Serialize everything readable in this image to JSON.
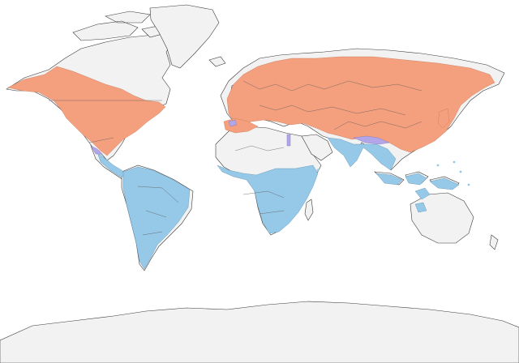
{
  "map": {
    "background": "#ffffff",
    "land_color": "#f2f2f2",
    "coast_color": "#3a3a3a",
    "ranges": [
      {
        "kind": "breeding",
        "color": "#f4a07e"
      },
      {
        "kind": "non-breeding",
        "color": "#96c8e8"
      },
      {
        "kind": "year-round",
        "color": "#b3a6e8"
      }
    ]
  }
}
